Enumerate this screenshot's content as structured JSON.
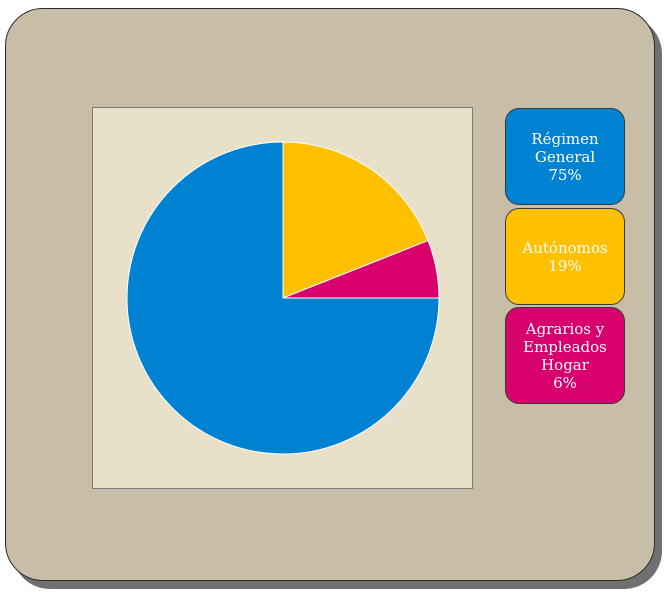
{
  "chart_data": {
    "type": "pie",
    "slices": [
      {
        "label": [
          "Régimen",
          "General"
        ],
        "value_label": "75%",
        "value": 75,
        "color": "#0082d2"
      },
      {
        "label": [
          "Autónomos"
        ],
        "value_label": "19%",
        "value": 19,
        "color": "#ffc000"
      },
      {
        "label": [
          "Agrarios y",
          "Empleados",
          "Hogar"
        ],
        "value_label": "6%",
        "value": 6,
        "color": "#d8006c"
      }
    ],
    "start_angle_deg": 0,
    "direction": "clockwise-from-top",
    "legend_position": "right",
    "title": ""
  }
}
